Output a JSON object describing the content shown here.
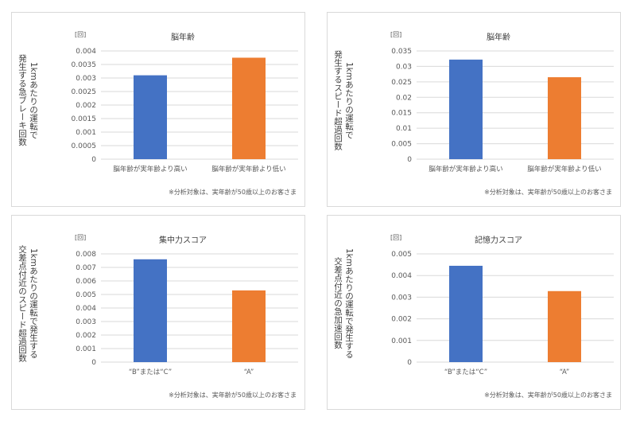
{
  "colors": {
    "blue": "#4472C4",
    "orange": "#ED7D31",
    "grid": "#d9d9d9"
  },
  "chart_data": [
    {
      "type": "bar",
      "title": "脳年齢",
      "unit": "[回]",
      "ylabel_lines": [
        "1kmあたりの運転で",
        "発生する急ブレーキ回数"
      ],
      "categories": [
        "脳年齢が実年齢より高い",
        "脳年齢が実年齢より低い"
      ],
      "values": [
        0.0031,
        0.00375
      ],
      "ylim": [
        0,
        0.004
      ],
      "yticks": [
        "0",
        "0.0005",
        "0.001",
        "0.0015",
        "0.002",
        "0.0025",
        "0.003",
        "0.0035",
        "0.004"
      ],
      "note": "※分析対象は、実年齢が50歳以上のお客さま",
      "grid": true
    },
    {
      "type": "bar",
      "title": "脳年齢",
      "unit": "[回]",
      "ylabel_lines": [
        "1kmあたりの運転で",
        "発生するスピード超過回数"
      ],
      "categories": [
        "脳年齢が実年齢より高い",
        "脳年齢が実年齢より低い"
      ],
      "values": [
        0.0322,
        0.0265
      ],
      "ylim": [
        0,
        0.035
      ],
      "yticks": [
        "0",
        "0.005",
        "0.01",
        "0.015",
        "0.02",
        "0.025",
        "0.03",
        "0.035"
      ],
      "note": "※分析対象は、実年齢が50歳以上のお客さま",
      "grid": true
    },
    {
      "type": "bar",
      "title": "集中力スコア",
      "unit": "[回]",
      "ylabel_lines": [
        "1kmあたりの運転で発生する",
        "交差点付近のスピード超過回数"
      ],
      "categories": [
        "“B”または“C”",
        "“A”"
      ],
      "values": [
        0.0076,
        0.0053
      ],
      "ylim": [
        0,
        0.008
      ],
      "yticks": [
        "0",
        "0.001",
        "0.002",
        "0.003",
        "0.004",
        "0.005",
        "0.006",
        "0.007",
        "0.008"
      ],
      "note": "※分析対象は、実年齢が50歳以上のお客さま",
      "grid": true
    },
    {
      "type": "bar",
      "title": "記憶力スコア",
      "unit": "[回]",
      "ylabel_lines": [
        "1kmあたりの運転で発生する",
        "交差点付近の急加速回数"
      ],
      "categories": [
        "“B”または“C”",
        "“A”"
      ],
      "values": [
        0.00445,
        0.00328
      ],
      "ylim": [
        0,
        0.005
      ],
      "yticks": [
        "0",
        "0.001",
        "0.002",
        "0.003",
        "0.004",
        "0.005"
      ],
      "note": "※分析対象は、実年齢が50歳以上のお客さま",
      "grid": true
    }
  ]
}
